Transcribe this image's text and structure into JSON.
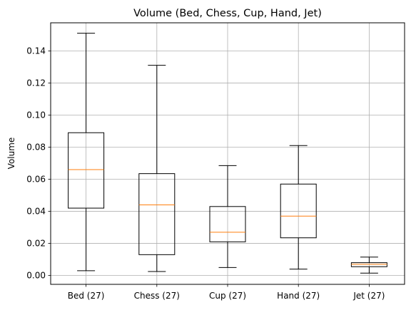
{
  "chart_data": {
    "type": "box",
    "title": "Volume (Bed, Chess, Cup, Hand, Jet)",
    "xlabel": "",
    "ylabel": "Volume",
    "ylim": [
      -0.0055,
      0.1575
    ],
    "yticks": [
      0.0,
      0.02,
      0.04,
      0.06,
      0.08,
      0.1,
      0.12,
      0.14
    ],
    "ytick_labels": [
      "0.00",
      "0.02",
      "0.04",
      "0.06",
      "0.08",
      "0.10",
      "0.12",
      "0.14"
    ],
    "grid": true,
    "categories": [
      "Bed (27)",
      "Chess (27)",
      "Cup (27)",
      "Hand (27)",
      "Jet (27)"
    ],
    "boxes": [
      {
        "whisker_low": 0.003,
        "q1": 0.042,
        "median": 0.066,
        "q3": 0.089,
        "whisker_high": 0.151
      },
      {
        "whisker_low": 0.0025,
        "q1": 0.013,
        "median": 0.044,
        "q3": 0.0635,
        "whisker_high": 0.131
      },
      {
        "whisker_low": 0.005,
        "q1": 0.021,
        "median": 0.027,
        "q3": 0.043,
        "whisker_high": 0.0685
      },
      {
        "whisker_low": 0.004,
        "q1": 0.0235,
        "median": 0.037,
        "q3": 0.057,
        "whisker_high": 0.081
      },
      {
        "whisker_low": 0.0015,
        "q1": 0.0055,
        "median": 0.007,
        "q3": 0.008,
        "whisker_high": 0.0115
      }
    ],
    "colors": {
      "box": "#000000",
      "median": "#ff7f0e",
      "grid": "#b0b0b0"
    }
  }
}
